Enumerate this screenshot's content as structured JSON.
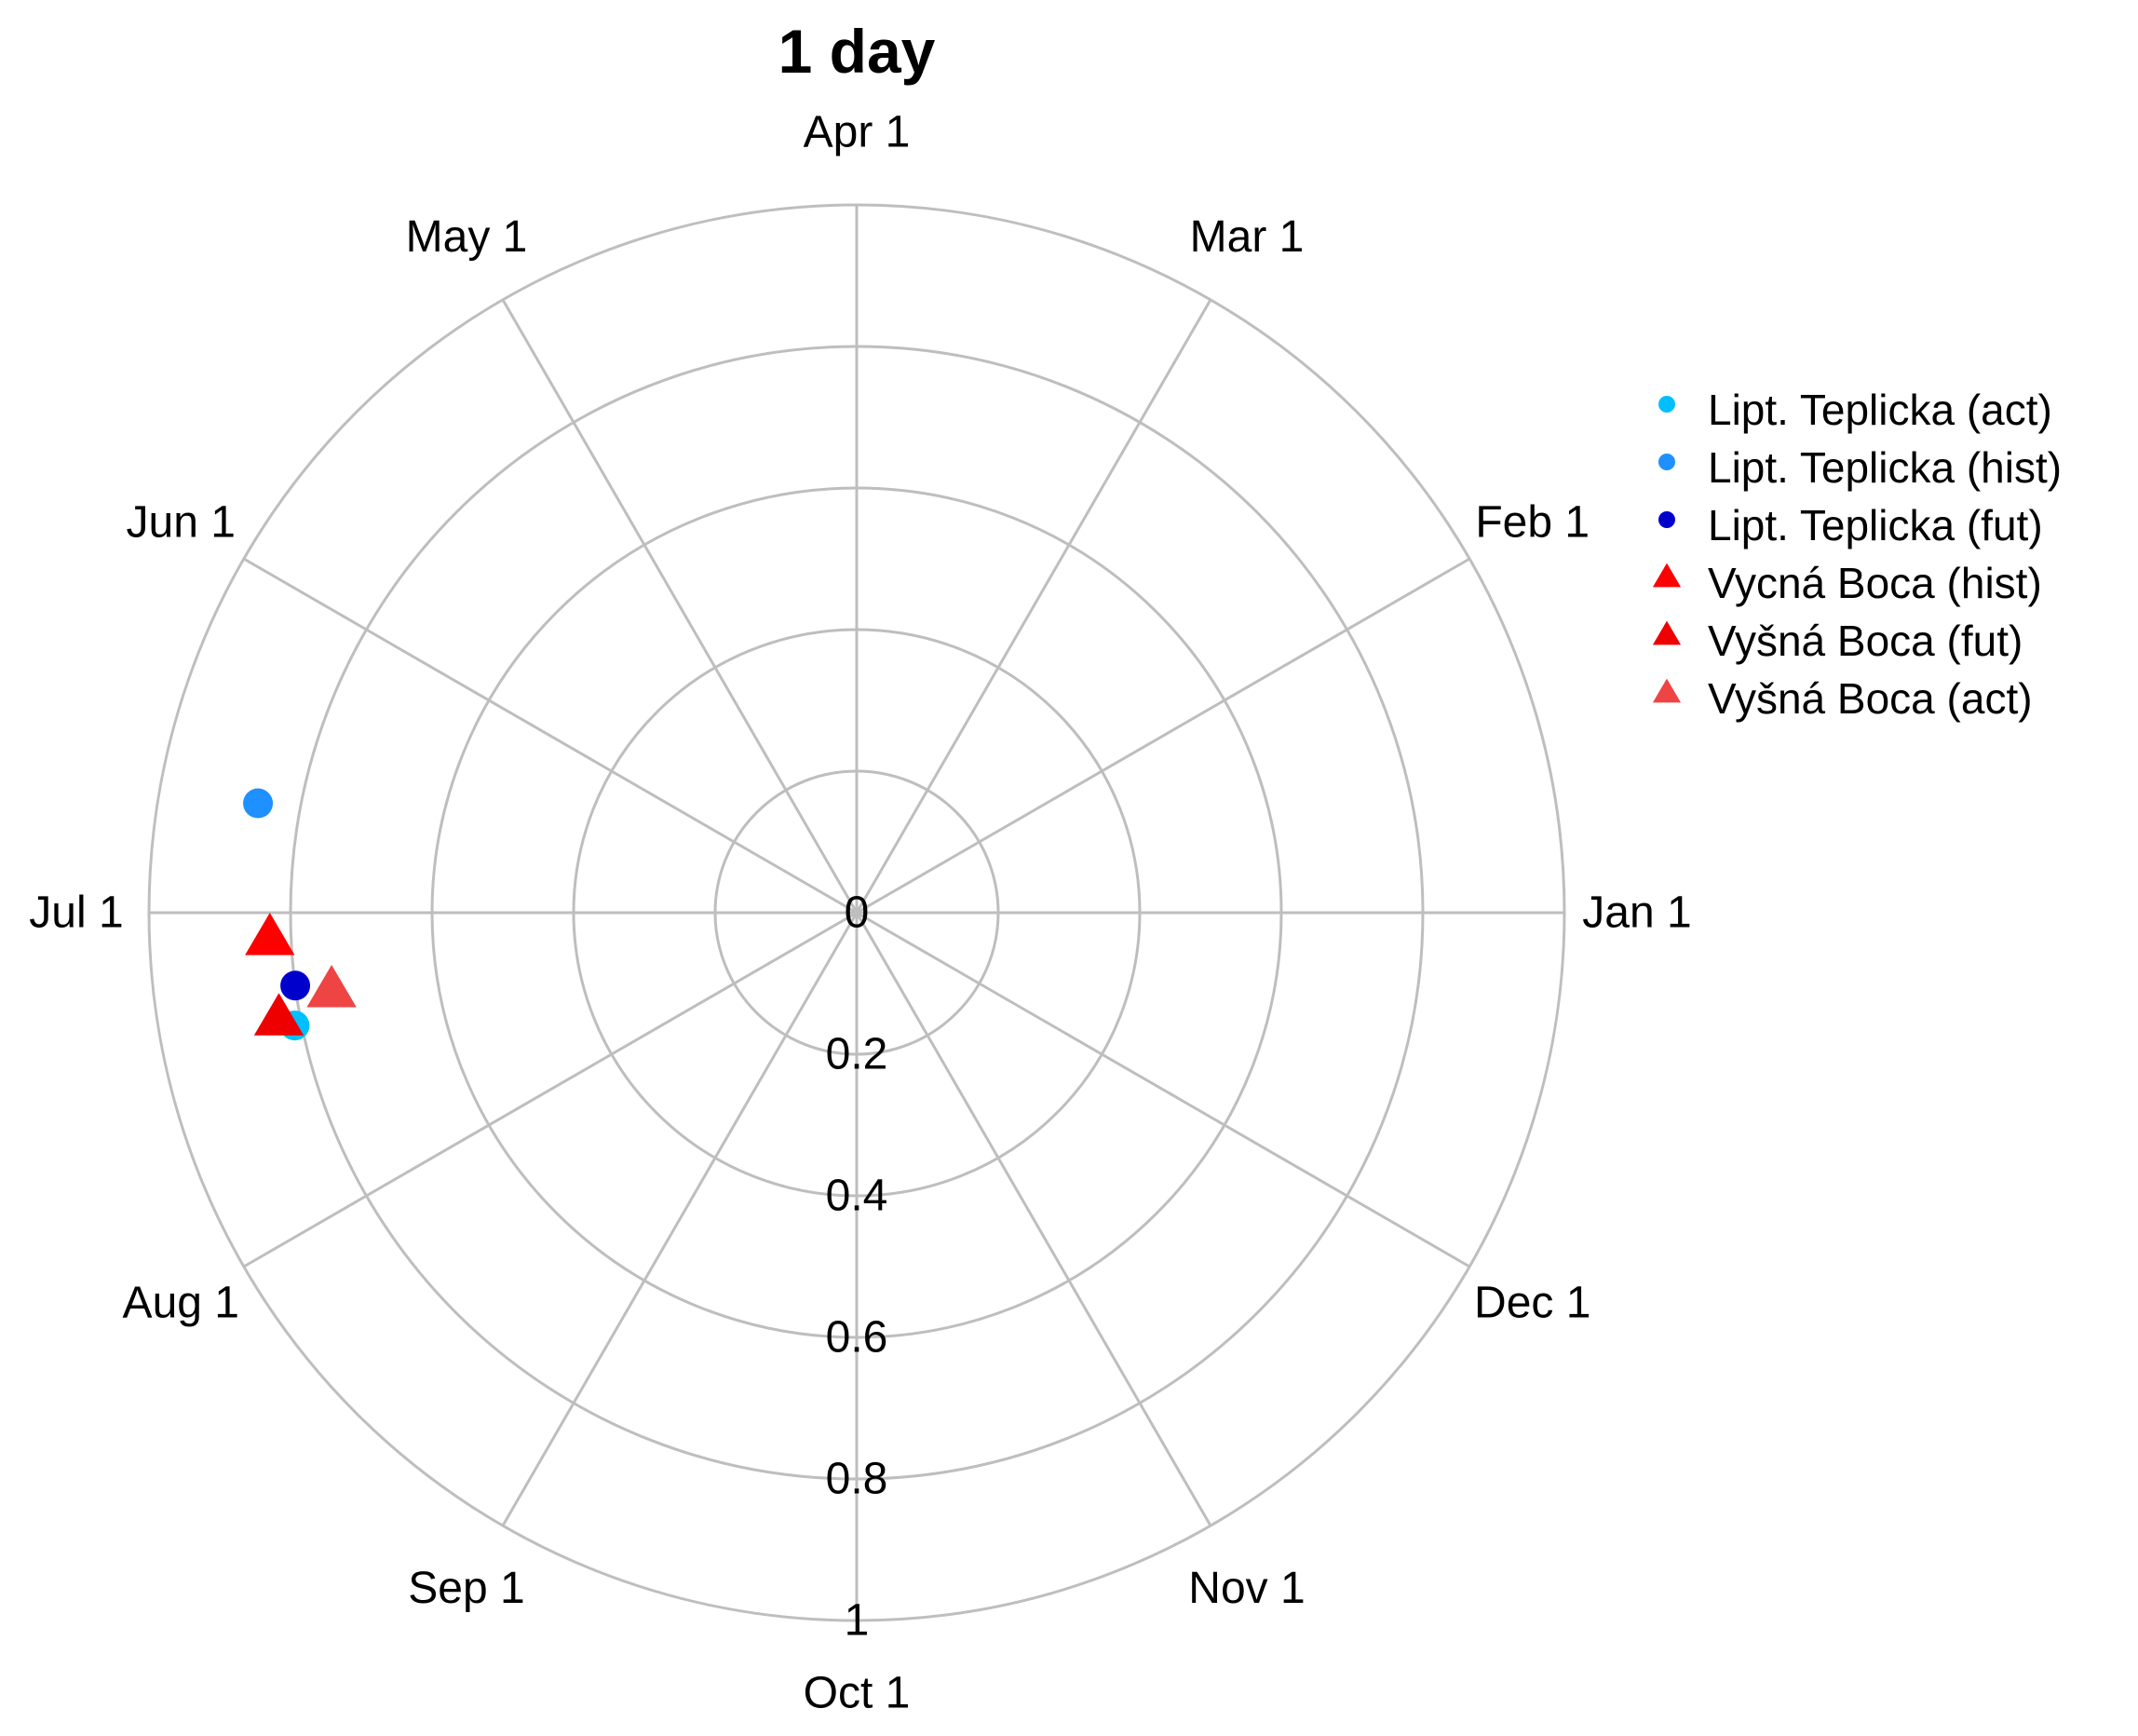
{
  "chart_data": {
    "type": "scatter",
    "coordinate_system": "polar",
    "title": "1 day",
    "angular_axis": {
      "labels": [
        "Jan 1",
        "Feb 1",
        "Mar 1",
        "Apr 1",
        "May 1",
        "Jun 1",
        "Jul 1",
        "Aug 1",
        "Sep 1",
        "Oct 1",
        "Nov 1",
        "Dec 1"
      ],
      "direction": "counterclockwise",
      "zero": "Jan 1 at right",
      "unit": "day of year"
    },
    "radial_axis": {
      "range": [
        0,
        1
      ],
      "ticks": [
        0,
        0.2,
        0.4,
        0.6,
        0.8,
        1
      ],
      "tick_labels": [
        "0",
        "0.2",
        "0.4",
        "0.6",
        "0.8",
        "1"
      ]
    },
    "grid": true,
    "legend_position": "right",
    "series": [
      {
        "name": "Lipt. Teplicka (act)",
        "marker": "circle",
        "color": "#00bfff",
        "points": [
          {
            "date": "Jul 14",
            "r": 0.81
          }
        ]
      },
      {
        "name": "Lipt. Teplicka (hist)",
        "marker": "circle",
        "color": "#1e90ff",
        "points": [
          {
            "date": "Jun 22",
            "r": 0.86
          }
        ]
      },
      {
        "name": "Lipt. Teplicka (fut)",
        "marker": "circle",
        "color": "#0000cd",
        "points": [
          {
            "date": "Jul 10",
            "r": 0.8
          }
        ]
      },
      {
        "name": "Vycná Boca (hist)",
        "marker": "triangle",
        "color": "#ff0000",
        "points": [
          {
            "date": "Jul 5",
            "r": 0.83
          }
        ]
      },
      {
        "name": "Vyšná Boca (fut)",
        "marker": "triangle",
        "color": "#ee0000",
        "points": [
          {
            "date": "Jul 13",
            "r": 0.83
          }
        ]
      },
      {
        "name": "Vyšná Boca (act)",
        "marker": "triangle",
        "color": "#ef4444",
        "points": [
          {
            "date": "Jul 11",
            "r": 0.75
          }
        ]
      }
    ]
  }
}
